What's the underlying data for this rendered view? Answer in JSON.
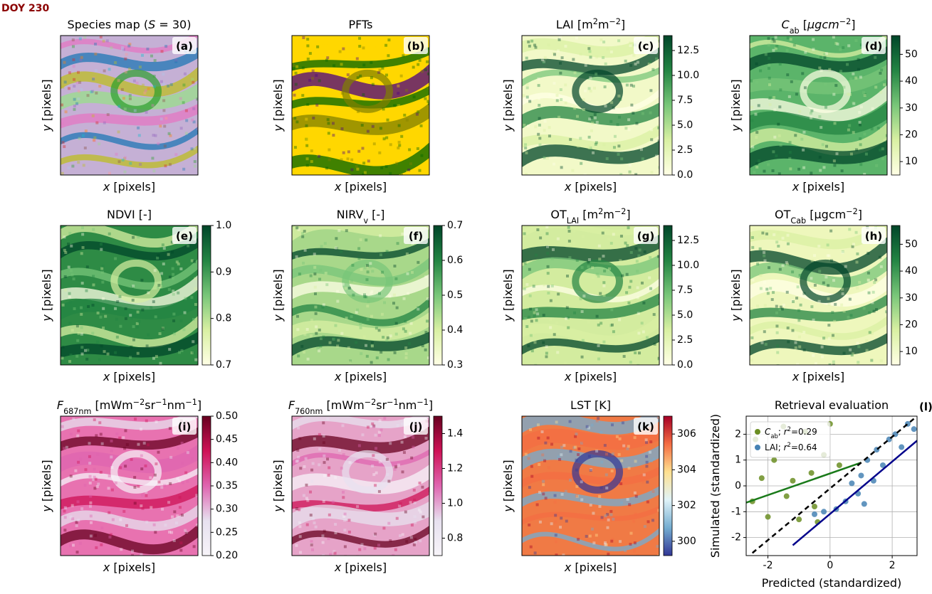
{
  "header": {
    "title": "DOY 230"
  },
  "chart_data": [
    {
      "type": "image",
      "title": [
        "Species map (",
        {
          "i": "S"
        },
        " = 30)"
      ],
      "label": "(a)",
      "xlabel": [
        {
          "i": "x"
        },
        " [pixels]"
      ],
      "ylabel": [
        {
          "i": "y"
        },
        " [pixels]"
      ],
      "color": "#c5b0d5",
      "cmap": [
        "#9467bd",
        "#e377c2",
        "#2ca02c",
        "#ff7f0e",
        "#1f77b4",
        "#d62728",
        "#8c564b",
        "#bcbd22",
        "#17becf",
        "#ff9896",
        "#98df8a",
        "#aec7e8"
      ]
    },
    {
      "type": "image",
      "title": [
        "PFTs"
      ],
      "label": "(b)",
      "xlabel": [
        {
          "i": "x"
        },
        " [pixels]"
      ],
      "ylabel": [
        {
          "i": "y"
        },
        " [pixels]"
      ],
      "color": "#ffd700",
      "cmap": [
        "#006400",
        "#ffd700",
        "#4b0082",
        "#808000",
        "#006400"
      ]
    },
    {
      "type": "image",
      "title": [
        "LAI [m",
        {
          "sup": "2"
        },
        "m",
        {
          "sup": "−2"
        },
        "]"
      ],
      "label": "(c)",
      "xlabel": [
        {
          "i": "x"
        },
        " [pixels]"
      ],
      "ylabel": [
        {
          "i": "y"
        },
        " [pixels]"
      ],
      "color": "#f2f9c8",
      "cmap": [
        "#ffffe5",
        "#d9f0a3",
        "#78c679",
        "#238443",
        "#004529"
      ],
      "clim": [
        0,
        14
      ],
      "cticks": [
        {
          "value": 0,
          "label": "0.0"
        },
        2.5,
        {
          "value": 5,
          "label": "5.0"
        },
        7.5,
        {
          "value": 10,
          "label": "10.0"
        },
        12.5
      ]
    },
    {
      "type": "image",
      "title": [
        {
          "i": "C"
        },
        {
          "sub": "ab"
        },
        " [",
        {
          "i": "μgcm"
        },
        {
          "sup": "−2"
        },
        "]"
      ],
      "label": "(d)",
      "xlabel": [
        {
          "i": "x"
        },
        " [pixels]"
      ],
      "ylabel": [
        {
          "i": "y"
        },
        " [pixels]"
      ],
      "color": "#5bb46a",
      "cmap": [
        "#ffffe5",
        "#d9f0a3",
        "#78c679",
        "#238443",
        "#004529"
      ],
      "clim": [
        5,
        57
      ],
      "cticks": [
        10,
        20,
        30,
        40,
        50
      ]
    },
    {
      "type": "image",
      "title": [
        "NDVI [-]"
      ],
      "label": "(e)",
      "xlabel": [
        {
          "i": "x"
        },
        " [pixels]"
      ],
      "ylabel": [
        {
          "i": "y"
        },
        " [pixels]"
      ],
      "color": "#2e8b45",
      "cmap": [
        "#ffffe5",
        "#d9f0a3",
        "#78c679",
        "#238443",
        "#004529"
      ],
      "clim": [
        0.7,
        1.0
      ],
      "cticks": [
        0.7,
        0.8,
        0.9,
        {
          "value": 1,
          "label": "1.0"
        }
      ]
    },
    {
      "type": "image",
      "title": [
        "NIRV",
        {
          "sub": "v"
        },
        " [-]"
      ],
      "label": "(f)",
      "xlabel": [
        {
          "i": "x"
        },
        " [pixels]"
      ],
      "ylabel": [
        {
          "i": "y"
        },
        " [pixels]"
      ],
      "color": "#a8d88a",
      "cmap": [
        "#ffffe5",
        "#d9f0a3",
        "#78c679",
        "#238443",
        "#004529"
      ],
      "clim": [
        0.3,
        0.7
      ],
      "cticks": [
        0.3,
        0.4,
        0.5,
        0.6,
        0.7
      ]
    },
    {
      "type": "image",
      "title": [
        "OT",
        {
          "sub": "LAI"
        },
        " [m",
        {
          "sup": "2"
        },
        "m",
        {
          "sup": "−2"
        },
        "]"
      ],
      "label": "(g)",
      "xlabel": [
        {
          "i": "x"
        },
        " [pixels]"
      ],
      "ylabel": [
        {
          "i": "y"
        },
        " [pixels]"
      ],
      "color": "#d3ec9f",
      "cmap": [
        "#ffffe5",
        "#d9f0a3",
        "#78c679",
        "#238443",
        "#004529"
      ],
      "clim": [
        0,
        14
      ],
      "cticks": [
        {
          "value": 0,
          "label": "0.0"
        },
        2.5,
        {
          "value": 5,
          "label": "5.0"
        },
        7.5,
        {
          "value": 10,
          "label": "10.0"
        },
        12.5
      ]
    },
    {
      "type": "image",
      "title": [
        "OT",
        {
          "sub": "Cab"
        },
        " [μgcm",
        {
          "sup": "−2"
        },
        "]"
      ],
      "label": "(h)",
      "xlabel": [
        {
          "i": "x"
        },
        " [pixels]"
      ],
      "ylabel": [
        {
          "i": "y"
        },
        " [pixels]"
      ],
      "color": "#eef7bc",
      "cmap": [
        "#ffffe5",
        "#d9f0a3",
        "#78c679",
        "#238443",
        "#004529"
      ],
      "clim": [
        5,
        57
      ],
      "cticks": [
        10,
        20,
        30,
        40,
        50
      ]
    },
    {
      "type": "image",
      "title": [
        {
          "i": "F"
        },
        {
          "sub": "687nm"
        },
        " [mWm",
        {
          "sup": "−2"
        },
        "sr",
        {
          "sup": "−1"
        },
        "nm",
        {
          "sup": "−1"
        },
        "]"
      ],
      "label": "(i)",
      "xlabel": [
        {
          "i": "x"
        },
        " [pixels]"
      ],
      "ylabel": [
        {
          "i": "y"
        },
        " [pixels]"
      ],
      "color": "#e872b0",
      "cmap": [
        "#f7f4f9",
        "#e7e1ef",
        "#df65b0",
        "#ce1256",
        "#67001f"
      ],
      "clim": [
        0.2,
        0.5
      ],
      "cticks": [
        {
          "value": 0.2,
          "label": "0.20"
        },
        0.25,
        {
          "value": 0.3,
          "label": "0.30"
        },
        0.35,
        {
          "value": 0.4,
          "label": "0.40"
        },
        0.45,
        {
          "value": 0.5,
          "label": "0.50"
        }
      ]
    },
    {
      "type": "image",
      "title": [
        {
          "i": "F"
        },
        {
          "sub": "760nm"
        },
        " [mWm",
        {
          "sup": "−2"
        },
        "sr",
        {
          "sup": "−1"
        },
        "nm",
        {
          "sup": "−1"
        },
        "]"
      ],
      "label": "(j)",
      "xlabel": [
        {
          "i": "x"
        },
        " [pixels]"
      ],
      "ylabel": [
        {
          "i": "y"
        },
        " [pixels]"
      ],
      "color": "#e6a3c8",
      "cmap": [
        "#f7f4f9",
        "#e7e1ef",
        "#df65b0",
        "#ce1256",
        "#67001f"
      ],
      "clim": [
        0.7,
        1.5
      ],
      "cticks": [
        0.8,
        {
          "value": 1,
          "label": "1.0"
        },
        1.2,
        1.4
      ]
    },
    {
      "type": "image",
      "title": [
        "LST [K]"
      ],
      "label": "(k)",
      "xlabel": [
        {
          "i": "x"
        },
        " [pixels]"
      ],
      "ylabel": [
        {
          "i": "y"
        },
        " [pixels]"
      ],
      "color": "#f07a45",
      "cmap": [
        "#313695",
        "#74add1",
        "#e0f3f8",
        "#fee090",
        "#f46d43",
        "#a50026"
      ],
      "clim": [
        299.2,
        307
      ],
      "cticks": [
        300,
        302,
        304,
        306
      ]
    },
    {
      "type": "scatter",
      "title": [
        "Retrieval evaluation"
      ],
      "label": "(l)",
      "xlabel": [
        "Predicted (standardized)"
      ],
      "ylabel": [
        "Simulated (standardized)"
      ],
      "xlim": [
        -2.7,
        2.8
      ],
      "ylim": [
        -2.7,
        2.7
      ],
      "xticks": [
        -2,
        0,
        2
      ],
      "yticks": [
        -2,
        -1,
        0,
        1,
        2
      ],
      "grid": true,
      "series": [
        {
          "name": [
            {
              "i": "C"
            },
            {
              "sub": "ab"
            },
            "; ",
            {
              "i": "r"
            },
            {
              "sup": "2"
            },
            "=0.29"
          ],
          "color": "#6b8e23",
          "x": [
            -2.5,
            -2.2,
            -2.0,
            -1.8,
            -1.5,
            -1.2,
            -1.0,
            -0.8,
            -0.6,
            -0.4,
            -0.2,
            0.0,
            0.3,
            -2.4,
            -1.4,
            -0.5
          ],
          "values": [
            -0.6,
            0.3,
            -1.2,
            1.0,
            2.3,
            0.2,
            -1.3,
            2.1,
            0.5,
            -1.4,
            1.2,
            2.4,
            0.8,
            1.8,
            -0.4,
            -0.8
          ]
        },
        {
          "name": [
            "LAI; ",
            {
              "i": "r"
            },
            {
              "sup": "2"
            },
            "=0.64"
          ],
          "color": "#4682b4",
          "x": [
            -0.5,
            -0.2,
            0.2,
            0.5,
            0.7,
            0.9,
            1.0,
            1.2,
            1.4,
            1.5,
            1.7,
            1.9,
            2.1,
            2.3,
            2.5,
            2.7,
            1.1
          ],
          "values": [
            -1.1,
            -1.0,
            -0.9,
            -0.6,
            0.1,
            -0.3,
            0.4,
            1.0,
            0.2,
            1.4,
            0.8,
            1.8,
            2.0,
            1.5,
            2.4,
            2.2,
            -0.7
          ]
        }
      ],
      "lines": [
        {
          "x": [
            -2.7,
            1.0
          ],
          "values": [
            -0.65,
            0.9
          ],
          "color": "#1a7a1a",
          "dash": false
        },
        {
          "x": [
            -1.2,
            2.8
          ],
          "values": [
            -2.3,
            1.75
          ],
          "color": "#00008b",
          "dash": false
        },
        {
          "x": [
            -2.5,
            2.8
          ],
          "values": [
            -2.6,
            2.7
          ],
          "color": "#000000",
          "dash": true
        }
      ]
    }
  ]
}
